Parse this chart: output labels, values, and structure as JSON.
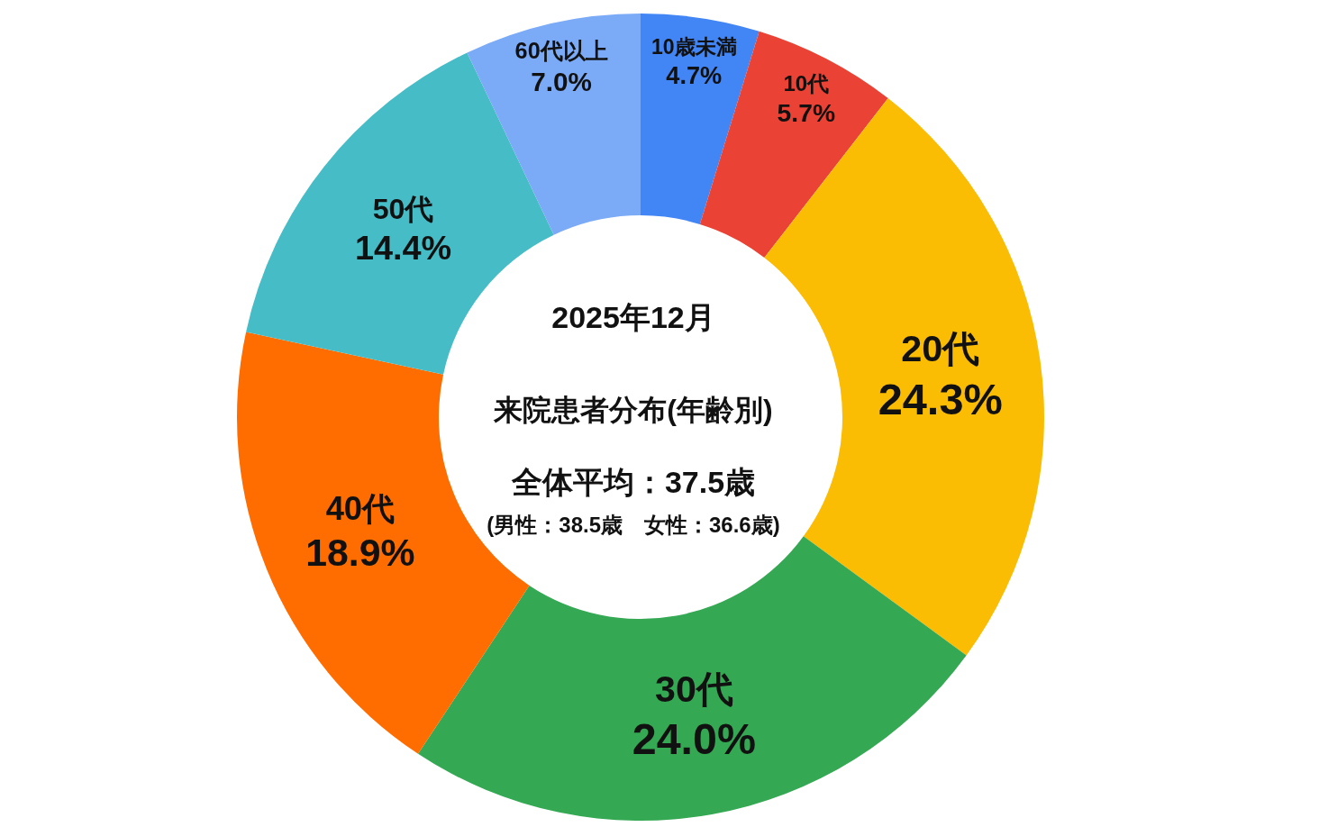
{
  "chart_data": {
    "type": "donut",
    "title": "2025年12月",
    "subtitle": "来院患者分布(年齢別)",
    "annotations": [
      "全体平均：37.5歳",
      "(男性：38.5歳　女性：36.6歳)"
    ],
    "categories": [
      "10歳未満",
      "10代",
      "20代",
      "30代",
      "40代",
      "50代",
      "60代以上"
    ],
    "values": [
      4.7,
      5.7,
      24.3,
      24.0,
      18.9,
      14.4,
      7.0
    ],
    "colors": [
      "#4285f4",
      "#ea4335",
      "#fbbc04",
      "#34a853",
      "#ff6d01",
      "#46bdc6",
      "#7baaf7"
    ],
    "value_labels": [
      "4.7%",
      "5.7%",
      "24.3%",
      "24.0%",
      "18.9%",
      "14.4%",
      "7.0%"
    ],
    "legend": false
  }
}
